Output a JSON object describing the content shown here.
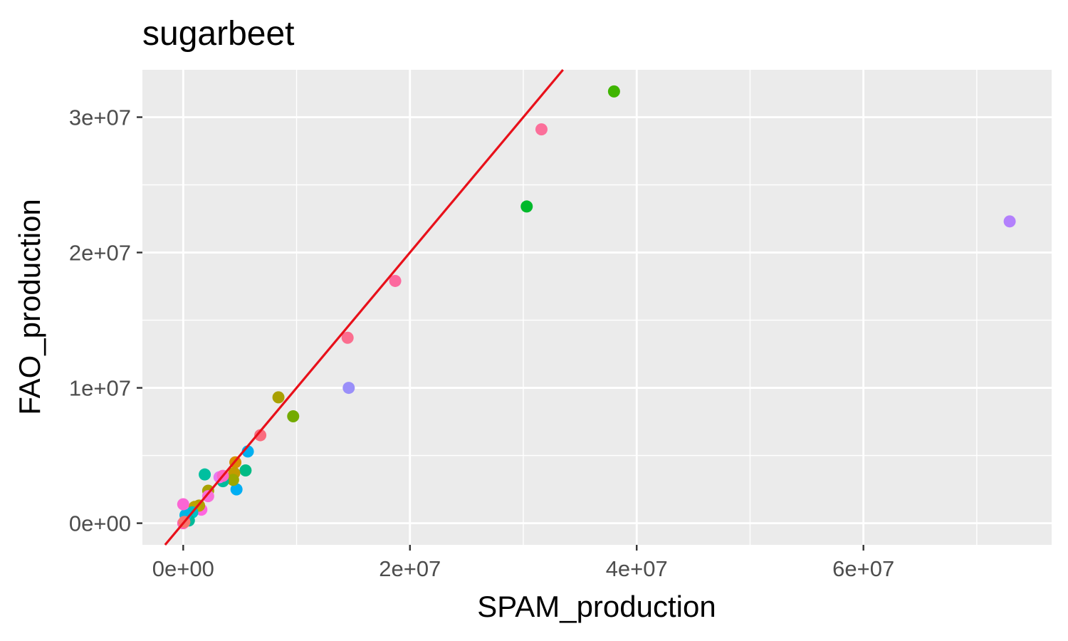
{
  "chart_data": {
    "type": "scatter",
    "title": "sugarbeet",
    "xlabel": "SPAM_production",
    "ylabel": "FAO_production",
    "xlim": [
      -3600000,
      76600000
    ],
    "ylim": [
      -1600000,
      33500000
    ],
    "x_ticks": [
      {
        "value": 0,
        "label": "0e+00"
      },
      {
        "value": 20000000,
        "label": "2e+07"
      },
      {
        "value": 40000000,
        "label": "4e+07"
      },
      {
        "value": 60000000,
        "label": "6e+07"
      }
    ],
    "y_ticks": [
      {
        "value": 0,
        "label": "0e+00"
      },
      {
        "value": 10000000,
        "label": "1e+07"
      },
      {
        "value": 20000000,
        "label": "2e+07"
      },
      {
        "value": 30000000,
        "label": "3e+07"
      }
    ],
    "grid": true,
    "legend": "none",
    "reference_line": {
      "slope": 1,
      "intercept": 0,
      "color": "#e8101a"
    },
    "points": [
      {
        "x": 38000000,
        "y": 31900000,
        "color": "#3fb500"
      },
      {
        "x": 31600000,
        "y": 29100000,
        "color": "#fb6f9a"
      },
      {
        "x": 30300000,
        "y": 23400000,
        "color": "#00b92b"
      },
      {
        "x": 72900000,
        "y": 22300000,
        "color": "#b380fc"
      },
      {
        "x": 18700000,
        "y": 17900000,
        "color": "#fc699e"
      },
      {
        "x": 14500000,
        "y": 13700000,
        "color": "#fb6e8f"
      },
      {
        "x": 14600000,
        "y": 10000000,
        "color": "#9a8ff9"
      },
      {
        "x": 8400000,
        "y": 9300000,
        "color": "#a9a000"
      },
      {
        "x": 9700000,
        "y": 7900000,
        "color": "#73ab00"
      },
      {
        "x": 6800000,
        "y": 6500000,
        "color": "#fa6c7e"
      },
      {
        "x": 5700000,
        "y": 5300000,
        "color": "#00aff0"
      },
      {
        "x": 5500000,
        "y": 3900000,
        "color": "#00bb84"
      },
      {
        "x": 4600000,
        "y": 4500000,
        "color": "#d88f00"
      },
      {
        "x": 4500000,
        "y": 3700000,
        "color": "#c49a00"
      },
      {
        "x": 4700000,
        "y": 2500000,
        "color": "#00aef3"
      },
      {
        "x": 4400000,
        "y": 3200000,
        "color": "#9ca700"
      },
      {
        "x": 3500000,
        "y": 3100000,
        "color": "#00bc9b"
      },
      {
        "x": 3200000,
        "y": 3400000,
        "color": "#e77bf2"
      },
      {
        "x": 3500000,
        "y": 3500000,
        "color": "#ff66c6"
      },
      {
        "x": 1900000,
        "y": 3600000,
        "color": "#00bf9f"
      },
      {
        "x": 2200000,
        "y": 2400000,
        "color": "#a9a200"
      },
      {
        "x": 2200000,
        "y": 2000000,
        "color": "#f86fd9"
      },
      {
        "x": 1600000,
        "y": 1000000,
        "color": "#ff66e0"
      },
      {
        "x": 1400000,
        "y": 1300000,
        "color": "#b3a000"
      },
      {
        "x": 1000000,
        "y": 1200000,
        "color": "#bda300"
      },
      {
        "x": 800000,
        "y": 800000,
        "color": "#00bfc4"
      },
      {
        "x": 500000,
        "y": 200000,
        "color": "#00ba9a"
      },
      {
        "x": 200000,
        "y": 600000,
        "color": "#00b6e4"
      },
      {
        "x": 0,
        "y": 1400000,
        "color": "#fb66d4"
      },
      {
        "x": 0,
        "y": 0,
        "color": "#ff63b8"
      },
      {
        "x": 100000,
        "y": 100000,
        "color": "#f8766d"
      }
    ]
  }
}
